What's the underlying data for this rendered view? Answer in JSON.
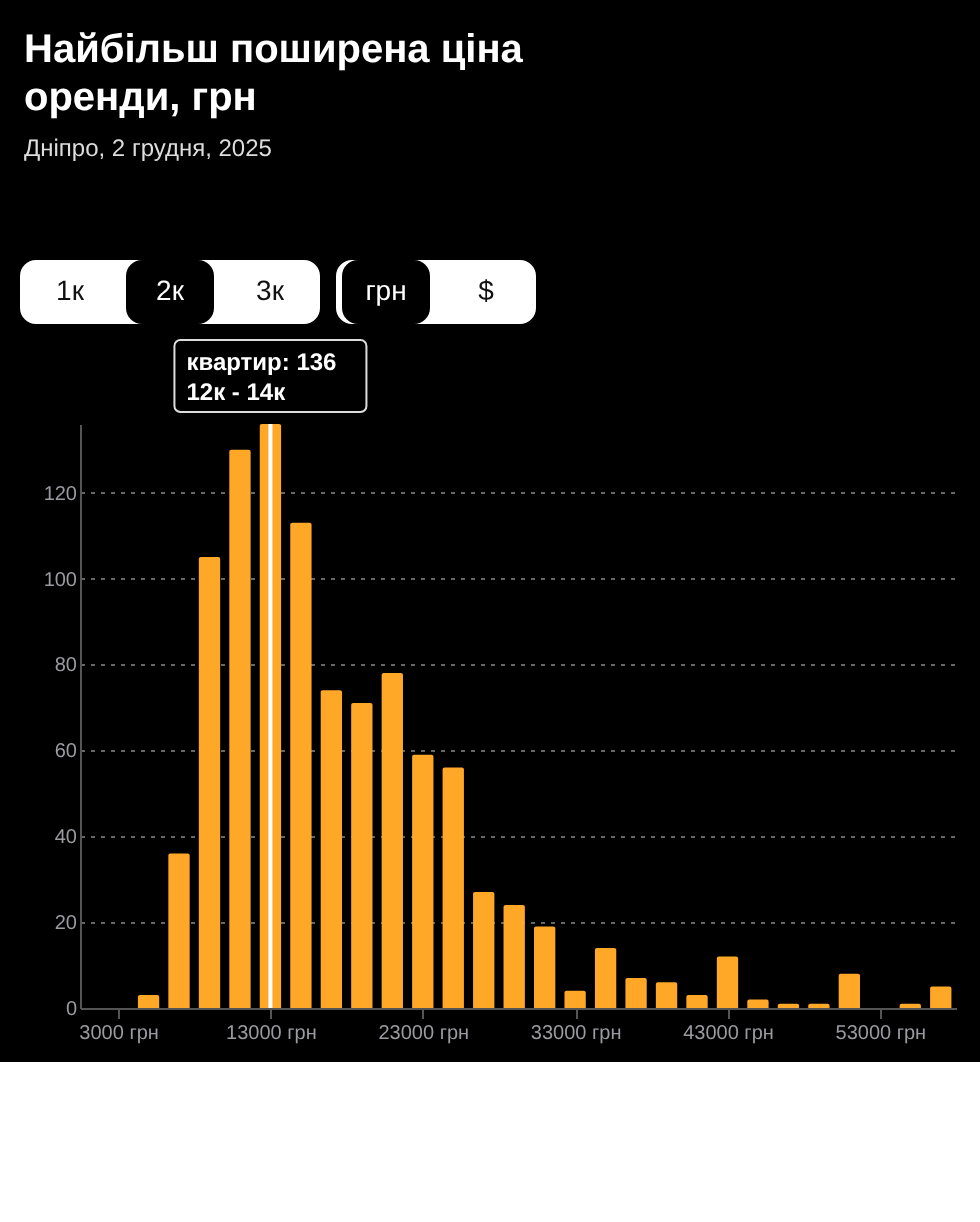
{
  "chart_data": {
    "type": "histogram",
    "title": "Найбільш поширена ціна оренди, грн",
    "subtitle": "Дніпро, 2 грудня, 2025",
    "bins": [
      4000,
      6000,
      8000,
      10000,
      12000,
      14000,
      16000,
      18000,
      20000,
      22000,
      24000,
      26000,
      28000,
      30000,
      32000,
      34000,
      36000,
      38000,
      40000,
      42000,
      44000,
      46000,
      48000,
      50000,
      52000,
      54000,
      56000,
      58000
    ],
    "values": [
      3,
      36,
      105,
      130,
      136,
      113,
      74,
      71,
      78,
      59,
      56,
      27,
      24,
      19,
      4,
      14,
      7,
      6,
      3,
      12,
      2,
      1,
      1,
      8,
      0,
      1,
      5
    ],
    "color": "#ffa726",
    "xlim": [
      500,
      58000
    ],
    "xticks": [
      {
        "value": 3000,
        "label": "3000 грн"
      },
      {
        "value": 13000,
        "label": "13000 грн"
      },
      {
        "value": 23000,
        "label": "23000 грн"
      },
      {
        "value": 33000,
        "label": "33000 грн"
      },
      {
        "value": 43000,
        "label": "43000 грн"
      },
      {
        "value": 53000,
        "label": "53000 грн"
      }
    ],
    "ylim": [
      0,
      136
    ],
    "yticks": [
      0,
      20,
      40,
      60,
      80,
      100,
      120
    ],
    "grid": "y",
    "ref_lines": [
      {
        "axis": "x",
        "value": 13000,
        "color": "#ffffff"
      }
    ],
    "annotations": [
      "1к",
      "2к",
      "3к",
      "грн",
      "$",
      {
        "text": "квартир: 136",
        "x": 13000,
        "y": 136
      },
      {
        "text": "12к - 14к",
        "x": 13000,
        "y": 136
      }
    ]
  }
}
